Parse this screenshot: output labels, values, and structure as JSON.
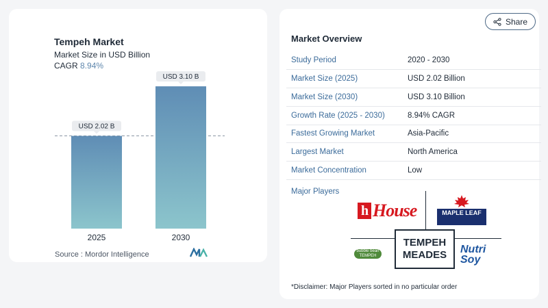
{
  "chart_data": {
    "type": "bar",
    "title": "Tempeh Market",
    "subtitle": "Market Size in USD Billion",
    "cagr_label": "CAGR",
    "cagr_value": "8.94%",
    "categories": [
      "2025",
      "2030"
    ],
    "values": [
      2.02,
      3.1
    ],
    "value_labels": [
      "USD 2.02 B",
      "USD 3.10 B"
    ],
    "ylim": [
      0,
      3.4
    ],
    "grid": false,
    "reference_line": 2.02,
    "colors": {
      "bar_top": "#5f8db5",
      "bar_bottom": "#8cc5cc",
      "label_bg": "#eaecef"
    }
  },
  "source": "Source :  Mordor Intelligence",
  "share_label": "Share",
  "overview": {
    "title": "Market Overview",
    "rows": [
      {
        "key": "Study Period",
        "value": "2020 - 2030"
      },
      {
        "key": "Market Size (2025)",
        "value": "USD 2.02 Billion"
      },
      {
        "key": "Market Size (2030)",
        "value": "USD 3.10 Billion"
      },
      {
        "key": "Growth Rate (2025 - 2030)",
        "value": "8.94% CAGR"
      },
      {
        "key": "Fastest Growing Market",
        "value": "Asia-Pacific"
      },
      {
        "key": "Largest Market",
        "value": "North America"
      },
      {
        "key": "Market Concentration",
        "value": "Low"
      }
    ],
    "players_label": "Major Players"
  },
  "players": {
    "house": "House",
    "maple_leaf": "MAPLE LEAF",
    "tempeh_meades": "TEMPEH MEADES",
    "bubble_tempeh": "bubble bean TEMPEH",
    "nutrisoy": "Nutri Soy"
  },
  "disclaimer": "*Disclaimer: Major Players sorted in no particular order",
  "colors": {
    "accent": "#3b6b9a",
    "background": "#f4f5f7"
  }
}
